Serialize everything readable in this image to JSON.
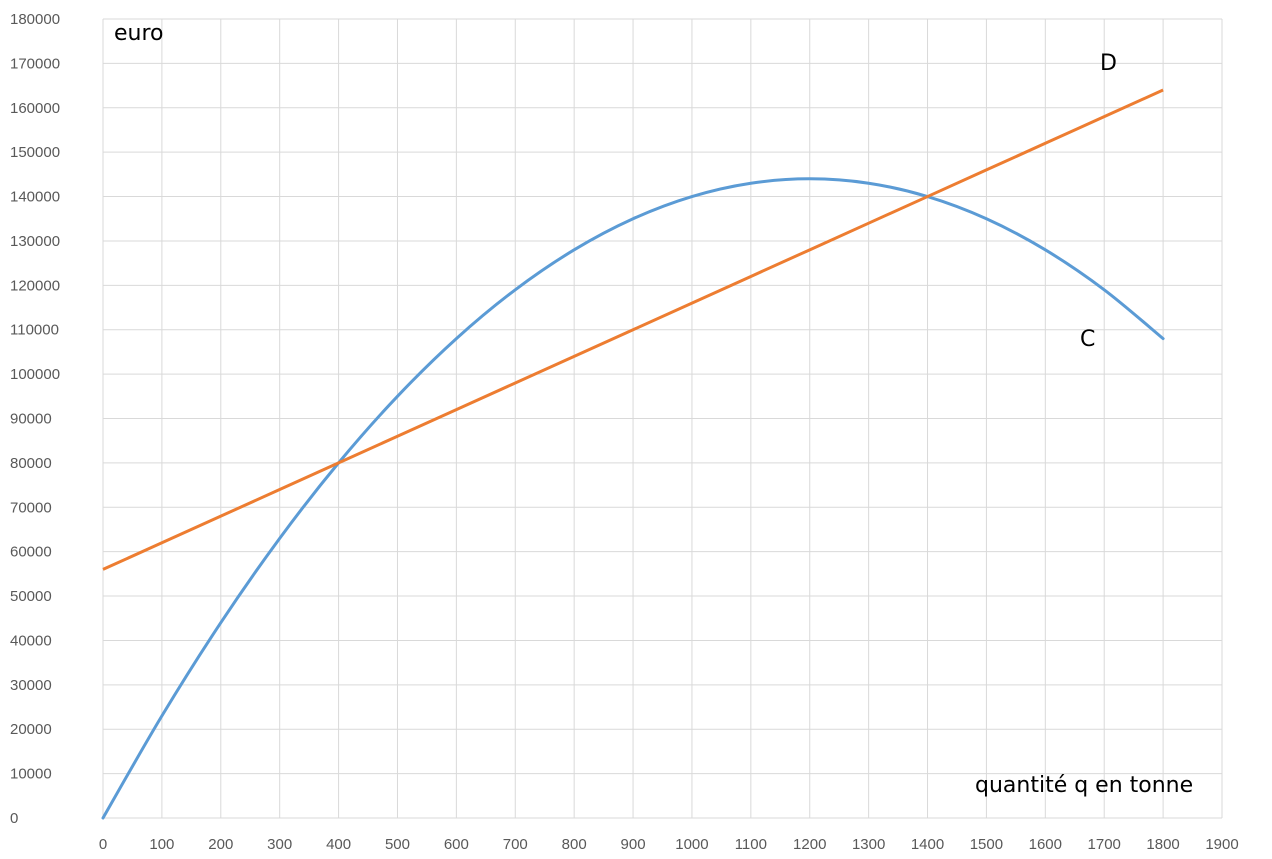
{
  "chart_data": {
    "type": "line",
    "ylabel": "euro",
    "xlabel": "quantité q en tonne",
    "xlim": [
      0,
      1900
    ],
    "ylim": [
      0,
      180000
    ],
    "x_ticks": [
      0,
      100,
      200,
      300,
      400,
      500,
      600,
      700,
      800,
      900,
      1000,
      1100,
      1200,
      1300,
      1400,
      1500,
      1600,
      1700,
      1800,
      1900
    ],
    "y_ticks": [
      0,
      10000,
      20000,
      30000,
      40000,
      50000,
      60000,
      70000,
      80000,
      90000,
      100000,
      110000,
      120000,
      130000,
      140000,
      150000,
      160000,
      170000,
      180000
    ],
    "grid": true,
    "x": [
      0,
      100,
      200,
      300,
      400,
      500,
      600,
      700,
      800,
      900,
      1000,
      1100,
      1200,
      1300,
      1400,
      1500,
      1600,
      1700,
      1800
    ],
    "series": [
      {
        "name": "C",
        "color": "#5B9BD5",
        "values": [
          0,
          23000,
          44000,
          63000,
          80000,
          95000,
          108000,
          119000,
          128000,
          135000,
          140000,
          143000,
          144000,
          143000,
          140000,
          135000,
          128000,
          119000,
          108000
        ]
      },
      {
        "name": "D",
        "color": "#ED7D31",
        "values": [
          56000,
          62000,
          68000,
          74000,
          80000,
          86000,
          92000,
          98000,
          104000,
          110000,
          116000,
          122000,
          128000,
          134000,
          140000,
          146000,
          152000,
          158000,
          164000
        ]
      }
    ]
  }
}
